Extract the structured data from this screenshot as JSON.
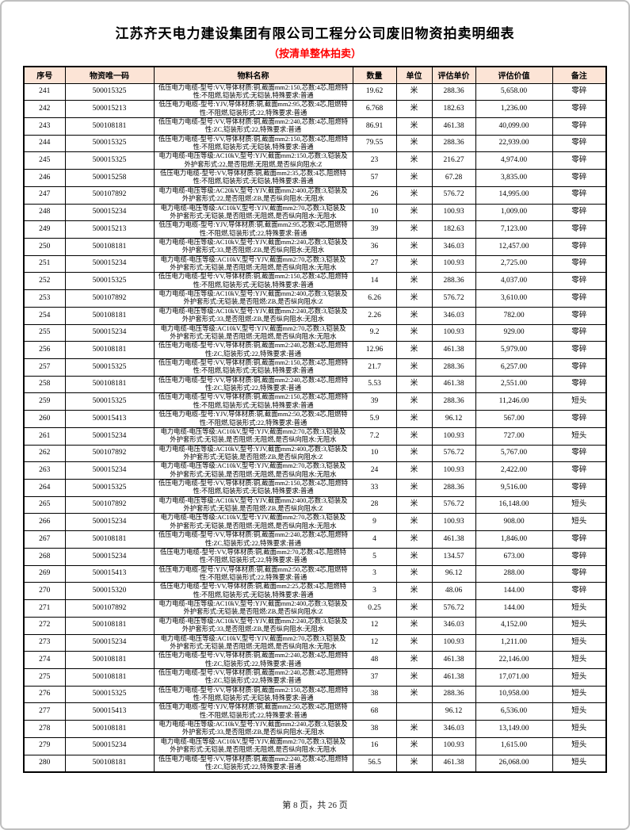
{
  "page": {
    "title": "江苏齐天电力建设集团有限公司工程分公司废旧物资拍卖明细表",
    "subtitle": "（按清单整体拍卖）",
    "footer": "第 8 页，共 26 页"
  },
  "colors": {
    "header_background": "#fce4d6",
    "subtitle_red": "#ff0000",
    "table_border": "#000000",
    "page_border": "#bfbfbf"
  },
  "table": {
    "headers": [
      "序号",
      "物资唯一码",
      "物料名称",
      "数量",
      "单位",
      "评估单价",
      "评估价值",
      "备注"
    ],
    "rows": [
      [
        "241",
        "500015325",
        "低压电力电缆-型号:VV,导体材质:铜,截面mm2:150,芯数:4芯,阻燃特性:不阻燃,铠装形式:无铠装,特殊要求:普通",
        "19.62",
        "米",
        "288.36",
        "5,658.00",
        "零碎"
      ],
      [
        "242",
        "500015213",
        "低压电力电缆-型号:YJV,导体材质:铜,截面mm2:95,芯数:4芯,阻燃特性:不阻燃,铠装形式:22,特殊要求:普通",
        "6.768",
        "米",
        "182.63",
        "1,236.00",
        "零碎"
      ],
      [
        "243",
        "500108181",
        "低压电力电缆-型号:VV,导体材质:铜,截面mm2:240,芯数:4芯,阻燃特性:ZC,铠装形式:22,特殊要求:普通",
        "86.91",
        "米",
        "461.38",
        "40,099.00",
        "零碎"
      ],
      [
        "244",
        "500015325",
        "低压电力电缆-型号:VV,导体材质:铜,截面mm2:150,芯数:4芯,阻燃特性:不阻燃,铠装形式:无铠装,特殊要求:普通",
        "79.55",
        "米",
        "288.36",
        "22,939.00",
        "零碎"
      ],
      [
        "245",
        "500015325",
        "电力电缆-电压等级:AC10kV,型号:YJV,截面mm2:150,芯数:3,铠装及外护套形式:22,是否阻燃:无阻燃,是否纵向阻水:Z",
        "23",
        "米",
        "216.27",
        "4,974.00",
        "零碎"
      ],
      [
        "246",
        "500015258",
        "低压电力电缆-型号:VV,导体材质:铜,截面mm2:35,芯数:4芯,阻燃特性:不阻燃,铠装形式:无铠装,特殊要求:普通",
        "57",
        "米",
        "67.28",
        "3,835.00",
        "零碎"
      ],
      [
        "247",
        "500107892",
        "电力电缆-电压等级:AC20kV,型号:YJV,截面mm2:400,芯数:3,铠装及外护套形式:22,是否阻燃:ZB,是否纵向阻水:无阻水",
        "26",
        "米",
        "576.72",
        "14,995.00",
        "零碎"
      ],
      [
        "248",
        "500015234",
        "电力电缆-电压等级:AC10kV,型号:YJV,截面mm2:70,芯数:3,铠装及外护套形式:无铠装,是否阻燃:无阻燃,是否纵向阻水:无阻水",
        "10",
        "米",
        "100.93",
        "1,009.00",
        "零碎"
      ],
      [
        "249",
        "500015213",
        "低压电力电缆-型号:YJV,导体材质:铜,截面mm2:95,芯数:4芯,阻燃特性:不阻燃,铠装形式:22,特殊要求:普通",
        "39",
        "米",
        "182.63",
        "7,123.00",
        "零碎"
      ],
      [
        "250",
        "500108181",
        "电力电缆-电压等级:AC10kV,型号:YJV,截面mm2:240,芯数:3,铠装及外护套形式:33,是否阻燃:ZB,是否纵向阻水:无阻水",
        "36",
        "米",
        "346.03",
        "12,457.00",
        "零碎"
      ],
      [
        "251",
        "500015234",
        "电力电缆-电压等级:AC10kV,型号:YJV,截面mm2:70,芯数:3,铠装及外护套形式:无铠装,是否阻燃:无阻燃,是否纵向阻水:无阻水",
        "27",
        "米",
        "100.93",
        "2,725.00",
        "零碎"
      ],
      [
        "252",
        "500015325",
        "低压电力电缆-型号:VV,导体材质:铜,截面mm2:150,芯数:4芯,阻燃特性:不阻燃,铠装形式:无铠装,特殊要求:普通",
        "14",
        "米",
        "288.36",
        "4,037.00",
        "零碎"
      ],
      [
        "253",
        "500107892",
        "电力电缆-电压等级:AC10kV,型号:YJV,截面mm2:400,芯数:3,铠装及外护套形式:无铠装,是否阻燃:ZB,是否纵向阻水:Z",
        "6.26",
        "米",
        "576.72",
        "3,610.00",
        "零碎"
      ],
      [
        "254",
        "500108181",
        "电力电缆-电压等级:AC10kV,型号:YJV,截面mm2:240,芯数:3,铠装及外护套形式:33,是否阻燃:ZB,是否纵向阻水:无阻水",
        "2.26",
        "米",
        "346.03",
        "782.00",
        "零碎"
      ],
      [
        "255",
        "500015234",
        "电力电缆-电压等级:AC10kV,型号:YJV,截面mm2:70,芯数:3,铠装及外护套形式:无铠装,是否阻燃:无阻燃,是否纵向阻水:无阻水",
        "9.2",
        "米",
        "100.93",
        "929.00",
        "零碎"
      ],
      [
        "256",
        "500108181",
        "低压电力电缆-型号:VV,导体材质:铜,截面mm2:240,芯数:4芯,阻燃特性:ZC,铠装形式:22,特殊要求:普通",
        "12.96",
        "米",
        "461.38",
        "5,979.00",
        "零碎"
      ],
      [
        "257",
        "500015325",
        "低压电力电缆-型号:VV,导体材质:铜,截面mm2:150,芯数:4芯,阻燃特性:不阻燃,铠装形式:无铠装,特殊要求:普通",
        "21.7",
        "米",
        "288.36",
        "6,257.00",
        "零碎"
      ],
      [
        "258",
        "500108181",
        "低压电力电缆-型号:VV,导体材质:铜,截面mm2:240,芯数:4芯,阻燃特性:ZC,铠装形式:22,特殊要求:普通",
        "5.53",
        "米",
        "461.38",
        "2,551.00",
        "零碎"
      ],
      [
        "259",
        "500015325",
        "低压电力电缆-型号:VV,导体材质:铜,截面mm2:150,芯数:4芯,阻燃特性:不阻燃,铠装形式:无铠装,特殊要求:普通",
        "39",
        "米",
        "288.36",
        "11,246.00",
        "短头"
      ],
      [
        "260",
        "500015413",
        "低压电力电缆-型号:YJV,导体材质:铜,截面mm2:50,芯数:4芯,阻燃特性:不阻燃,铠装形式:22,特殊要求:普通",
        "5.9",
        "米",
        "96.12",
        "567.00",
        "零碎"
      ],
      [
        "261",
        "500015234",
        "电力电缆-电压等级:AC10kV,型号:YJV,截面mm2:70,芯数:3,铠装及外护套形式:无铠装,是否阻燃:无阻燃,是否纵向阻水:无阻水",
        "7.2",
        "米",
        "100.93",
        "727.00",
        "短头"
      ],
      [
        "262",
        "500107892",
        "电力电缆-电压等级:AC10kV,型号:YJV,截面mm2:400,芯数:3,铠装及外护套形式:无铠装,是否阻燃:ZB,是否纵向阻水:Z",
        "10",
        "米",
        "576.72",
        "5,767.00",
        "零碎"
      ],
      [
        "263",
        "500015234",
        "电力电缆-电压等级:AC10kV,型号:YJV,截面mm2:70,芯数:3,铠装及外护套形式:无铠装,是否阻燃:无阻燃,是否纵向阻水:无阻水",
        "24",
        "米",
        "100.93",
        "2,422.00",
        "零碎"
      ],
      [
        "264",
        "500015325",
        "低压电力电缆-型号:VV,导体材质:铜,截面mm2:150,芯数:4芯,阻燃特性:不阻燃,铠装形式:无铠装,特殊要求:普通",
        "33",
        "米",
        "288.36",
        "9,516.00",
        "零碎"
      ],
      [
        "265",
        "500107892",
        "电力电缆-电压等级:AC10kV,型号:YJV,截面mm2:400,芯数:3,铠装及外护套形式:无铠装,是否阻燃:ZB,是否纵向阻水:Z",
        "28",
        "米",
        "576.72",
        "16,148.00",
        "短头"
      ],
      [
        "266",
        "500015234",
        "电力电缆-电压等级:AC10kV,型号:YJV,截面mm2:70,芯数:3,铠装及外护套形式:无铠装,是否阻燃:无阻燃,是否纵向阻水:无阻水",
        "9",
        "米",
        "100.93",
        "908.00",
        "短头"
      ],
      [
        "267",
        "500108181",
        "低压电力电缆-型号:VV,导体材质:铜,截面mm2:240,芯数:4芯,阻燃特性:ZC,铠装形式:22,特殊要求:普通",
        "4",
        "米",
        "461.38",
        "1,846.00",
        "零碎"
      ],
      [
        "268",
        "500015234",
        "低压电力电缆-型号:VV,导体材质:铜,截面mm2:70,芯数:4芯,阻燃特性:不阻燃,铠装形式:22,特殊要求:普通",
        "5",
        "米",
        "134.57",
        "673.00",
        "零碎"
      ],
      [
        "269",
        "500015413",
        "低压电力电缆-型号:YJV,导体材质:铜,截面mm2:50,芯数:4芯,阻燃特性:不阻燃,铠装形式:22,特殊要求:普通",
        "3",
        "米",
        "96.12",
        "288.00",
        "零碎"
      ],
      [
        "270",
        "500015320",
        "低压电力电缆-型号:VV,导体材质:铜,截面mm2:25,芯数:4芯,阻燃特性:不阻燃,铠装形式:无铠装,特殊要求:普通",
        "3",
        "米",
        "48.06",
        "144.00",
        "零碎"
      ],
      [
        "271",
        "500107892",
        "电力电缆-电压等级:AC10kV,型号:YJV,截面mm2:400,芯数:3,铠装及外护套形式:无铠装,是否阻燃:ZB,是否纵向阻水:Z",
        "0.25",
        "米",
        "576.72",
        "144.00",
        "短头"
      ],
      [
        "272",
        "500108181",
        "电力电缆-电压等级:AC10kV,型号:YJV,截面mm2:240,芯数:3,铠装及外护套形式:33,是否阻燃:ZB,是否纵向阻水:无阻水",
        "12",
        "米",
        "346.03",
        "4,152.00",
        "短头"
      ],
      [
        "273",
        "500015234",
        "电力电缆-电压等级:AC10kV,型号:YJV,截面mm2:70,芯数:3,铠装及外护套形式:无铠装,是否阻燃:无阻燃,是否纵向阻水:无阻水",
        "12",
        "米",
        "100.93",
        "1,211.00",
        "短头"
      ],
      [
        "274",
        "500108181",
        "低压电力电缆-型号:VV,导体材质:铜,截面mm2:240,芯数:4芯,阻燃特性:ZC,铠装形式:22,特殊要求:普通",
        "48",
        "米",
        "461.38",
        "22,146.00",
        "短头"
      ],
      [
        "275",
        "500108181",
        "低压电力电缆-型号:VV,导体材质:铜,截面mm2:240,芯数:4芯,阻燃特性:ZC,铠装形式:22,特殊要求:普通",
        "37",
        "米",
        "461.38",
        "17,071.00",
        "短头"
      ],
      [
        "276",
        "500015325",
        "低压电力电缆-型号:VV,导体材质:铜,截面mm2:150,芯数:4芯,阻燃特性:不阻燃,铠装形式:无铠装,特殊要求:普通",
        "38",
        "米",
        "288.36",
        "10,958.00",
        "短头"
      ],
      [
        "277",
        "500015413",
        "低压电力电缆-型号:YJV,导体材质:铜,截面mm2:50,芯数:4芯,阻燃特性:不阻燃,铠装形式:22,特殊要求:普通",
        "68",
        "",
        "96.12",
        "6,536.00",
        "短头"
      ],
      [
        "278",
        "500108181",
        "电力电缆-电压等级:AC10kV,型号:YJV,截面mm2:240,芯数:3,铠装及外护套形式:33,是否阻燃:ZB,是否纵向阻水:无阻水",
        "38",
        "米",
        "346.03",
        "13,149.00",
        "短头"
      ],
      [
        "279",
        "500015234",
        "电力电缆-电压等级:AC10kV,型号:YJV,截面mm2:70,芯数:3,铠装及外护套形式:无铠装,是否阻燃:无阻燃,是否纵向阻水:无阻水",
        "16",
        "米",
        "100.93",
        "1,615.00",
        "短头"
      ],
      [
        "280",
        "500108181",
        "低压电力电缆-型号:VV,导体材质:铜,截面mm2:240,芯数:4芯,阻燃特性:ZC,铠装形式:22,特殊要求:普通",
        "56.5",
        "米",
        "461.38",
        "26,068.00",
        "短头"
      ]
    ]
  }
}
